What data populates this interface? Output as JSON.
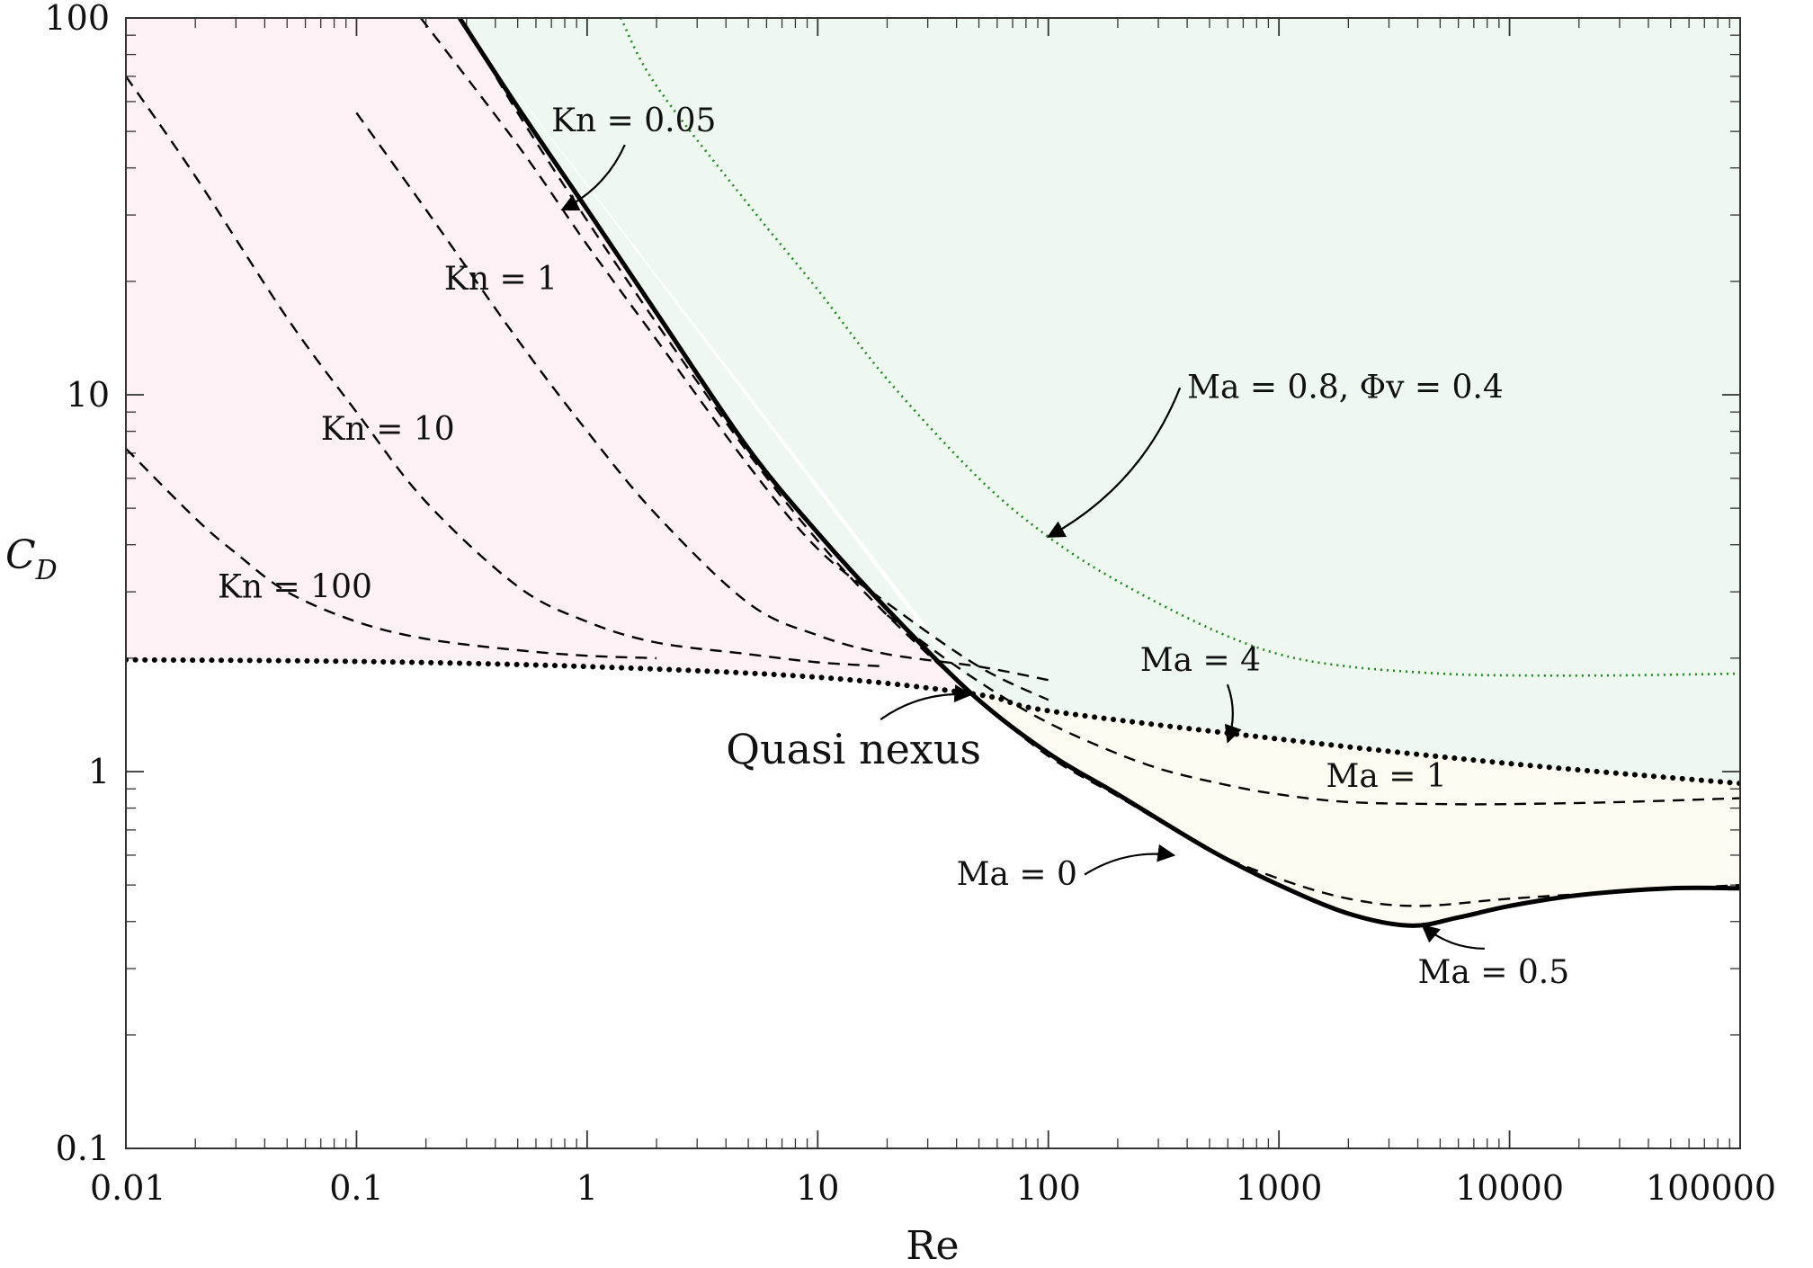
{
  "chart_data": {
    "type": "line",
    "xlabel": "Re",
    "ylabel": "C_D",
    "x_scale": "log",
    "y_scale": "log",
    "xlim": [
      0.01,
      100000
    ],
    "ylim": [
      0.1,
      100
    ],
    "x_ticks": [
      "0.01",
      "0.1",
      "1",
      "10",
      "100",
      "1000",
      "10000",
      "100000"
    ],
    "y_ticks": [
      "0.1",
      "1",
      "10",
      "100"
    ],
    "grid": false,
    "regions": [
      {
        "color": "#fdf1f5"
      },
      {
        "color": "#eef8f0"
      },
      {
        "color": "#fdfbf1"
      }
    ],
    "series": [
      {
        "name": "Ma = 0",
        "style": "solid",
        "color": "#000000",
        "x": [
          0.28,
          0.5,
          1,
          2,
          5,
          10,
          20,
          47,
          100,
          200,
          500,
          1000,
          2000,
          3700,
          6000,
          10000,
          20000,
          50000,
          100000
        ],
        "y": [
          100,
          58,
          31,
          16.5,
          7.2,
          4.3,
          2.7,
          1.6,
          1.12,
          0.87,
          0.62,
          0.5,
          0.42,
          0.39,
          0.41,
          0.44,
          0.47,
          0.49,
          0.49
        ]
      },
      {
        "name": "Ma = 0.5",
        "style": "dashed",
        "color": "#000000",
        "x": [
          0.3,
          0.5,
          1,
          2,
          5,
          10,
          20,
          47,
          100,
          200,
          500,
          1000,
          2000,
          4000,
          10000,
          30000,
          100000
        ],
        "y": [
          95,
          56,
          29,
          15.5,
          7,
          4.1,
          2.6,
          1.6,
          1.1,
          0.86,
          0.62,
          0.52,
          0.46,
          0.44,
          0.46,
          0.48,
          0.5
        ]
      },
      {
        "name": "Ma = 1",
        "style": "dashed",
        "color": "#000000",
        "x": [
          20,
          40,
          80,
          150,
          300,
          600,
          1000,
          2000,
          5000,
          10000,
          30000,
          100000
        ],
        "y": [
          2.6,
          1.9,
          1.45,
          1.2,
          1.02,
          0.92,
          0.87,
          0.83,
          0.82,
          0.82,
          0.83,
          0.85
        ]
      },
      {
        "name": "Kn = 0.05",
        "style": "dashed",
        "color": "#000000",
        "x": [
          0.19,
          0.5,
          1,
          2,
          5,
          10,
          20,
          50,
          100
        ],
        "y": [
          100,
          46,
          25,
          14,
          6.5,
          3.9,
          2.8,
          1.9,
          1.55
        ]
      },
      {
        "name": "Kn = 1",
        "style": "dashed",
        "color": "#000000",
        "x": [
          0.1,
          0.2,
          0.5,
          1,
          2,
          5,
          10,
          20,
          50,
          100
        ],
        "y": [
          56,
          31,
          14,
          8,
          4.8,
          2.8,
          2.3,
          2.05,
          1.9,
          1.75
        ]
      },
      {
        "name": "Kn = 10",
        "style": "dashed",
        "color": "#000000",
        "x": [
          0.01,
          0.02,
          0.05,
          0.1,
          0.2,
          0.5,
          1,
          2,
          5,
          10,
          20
        ],
        "y": [
          70,
          38,
          16,
          9,
          5.2,
          3.1,
          2.5,
          2.2,
          2.05,
          1.95,
          1.9
        ]
      },
      {
        "name": "Kn = 100",
        "style": "dashed",
        "color": "#000000",
        "x": [
          0.01,
          0.02,
          0.03,
          0.05,
          0.1,
          0.2,
          0.5,
          1,
          2
        ],
        "y": [
          7.2,
          4.7,
          3.8,
          3.0,
          2.5,
          2.25,
          2.1,
          2.03,
          2.0
        ]
      },
      {
        "name": "Ma = 4",
        "style": "dotted-heavy",
        "color": "#000000",
        "x": [
          0.01,
          0.1,
          1,
          10,
          50,
          100,
          1000,
          10000,
          100000
        ],
        "y": [
          1.98,
          1.96,
          1.9,
          1.78,
          1.6,
          1.45,
          1.22,
          1.05,
          0.93
        ]
      },
      {
        "name": "Ma = 0.8, Φv = 0.4",
        "style": "dotted",
        "color": "#1a8a1a",
        "x": [
          1.4,
          2,
          5,
          10,
          20,
          50,
          100,
          200,
          500,
          1000,
          2000,
          5000,
          10000,
          30000,
          100000
        ],
        "y": [
          100,
          66,
          32,
          19,
          11,
          6,
          4.2,
          3.2,
          2.4,
          2.05,
          1.9,
          1.82,
          1.8,
          1.8,
          1.82
        ]
      }
    ],
    "annotations": [
      {
        "text": "Kn = 0.05",
        "x": 0.7,
        "y": 50,
        "ax": 0.78,
        "ay": 31
      },
      {
        "text": "Kn = 1",
        "x": 0.24,
        "y": 19
      },
      {
        "text": "Kn = 10",
        "x": 0.07,
        "y": 7.6
      },
      {
        "text": "Kn = 100",
        "x": 0.025,
        "y": 2.9
      },
      {
        "text": "Ma = 0.8, Φv = 0.4",
        "x": 400,
        "y": 9.8,
        "ax": 100,
        "ay": 4.2
      },
      {
        "text": "Ma = 4",
        "x": 250,
        "y": 1.85,
        "ax": 600,
        "ay": 1.2
      },
      {
        "text": "Quasi nexus",
        "x": 4,
        "y": 1.05,
        "ax": 46,
        "ay": 1.6
      },
      {
        "text": "Ma = 1",
        "x": 1600,
        "y": 0.91
      },
      {
        "text": "Ma = 0",
        "x": 40,
        "y": 0.5,
        "ax": 350,
        "ay": 0.6
      },
      {
        "text": "Ma = 0.5",
        "x": 4000,
        "y": 0.275,
        "ax": 4200,
        "ay": 0.39
      }
    ]
  }
}
